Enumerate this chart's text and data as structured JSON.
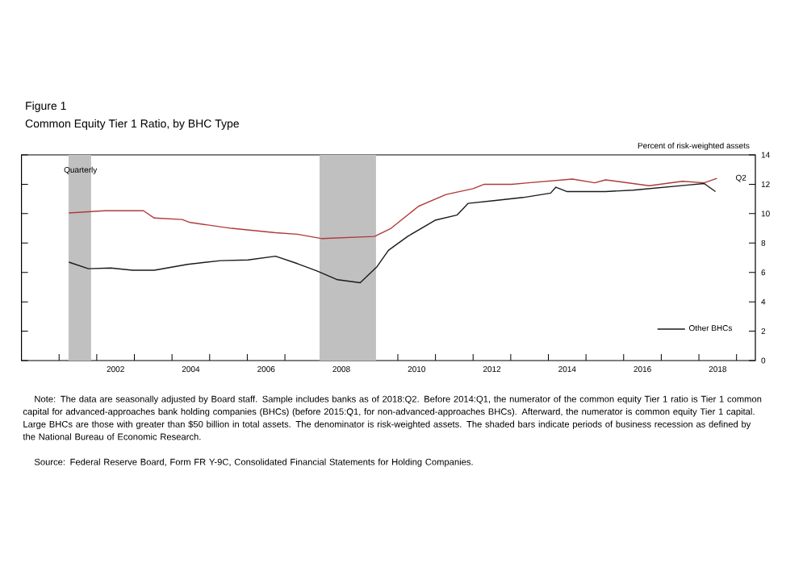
{
  "chart_data": {
    "type": "line",
    "title": "Figure 1",
    "subtitle": "Common Equity Tier 1 Ratio, by BHC Type",
    "ylabel": "Percent of risk-weighted assets",
    "xlim": [
      2000,
      2019.5
    ],
    "ylim": [
      0,
      14
    ],
    "yticks": [
      0,
      2,
      4,
      6,
      8,
      10,
      12,
      14
    ],
    "xticks": [
      {
        "value": 2001,
        "label": null
      },
      {
        "value": 2002,
        "label": null
      },
      {
        "value": 2003,
        "label": null
      },
      {
        "value": 2004,
        "label": null
      },
      {
        "value": 2005,
        "label": null
      },
      {
        "value": 2006,
        "label": null
      },
      {
        "value": 2007,
        "label": null
      },
      {
        "value": 2008,
        "label": null
      },
      {
        "value": 2009,
        "label": null
      },
      {
        "value": 2010,
        "label": null
      },
      {
        "value": 2011,
        "label": null
      },
      {
        "value": 2012,
        "label": null
      },
      {
        "value": 2013,
        "label": null
      },
      {
        "value": 2014,
        "label": null
      },
      {
        "value": 2015,
        "label": null
      },
      {
        "value": 2016,
        "label": null
      },
      {
        "value": 2017,
        "label": null
      },
      {
        "value": 2018,
        "label": null
      },
      {
        "value": 2019,
        "label": null
      },
      {
        "value": 2002.5,
        "label": "2002"
      },
      {
        "value": 2004.5,
        "label": "2004"
      },
      {
        "value": 2006.5,
        "label": "2006"
      },
      {
        "value": 2008.5,
        "label": "2008"
      },
      {
        "value": 2010.5,
        "label": "2010"
      },
      {
        "value": 2012.5,
        "label": "2012"
      },
      {
        "value": 2014.5,
        "label": "2014"
      },
      {
        "value": 2016.5,
        "label": "2016"
      },
      {
        "value": 2018.5,
        "label": "2018"
      }
    ],
    "series": [
      {
        "color": "#b03a3a",
        "x": [
          2001.26,
          2002.21,
          2003.24,
          2003.53,
          2004.27,
          2004.48,
          2005.58,
          2006.75,
          2007.33,
          2007.99,
          2009.38,
          2009.82,
          2010.55,
          2011.28,
          2012.0,
          2012.3,
          2013.03,
          2013.47,
          2014.64,
          2015.23,
          2015.52,
          2016.68,
          2017.56,
          2018.14,
          2018.48
        ],
        "values": [
          10.05,
          10.2,
          10.2,
          9.7,
          9.6,
          9.4,
          9.0,
          8.7,
          8.6,
          8.3,
          8.45,
          9.0,
          10.5,
          11.3,
          11.7,
          12.0,
          12.0,
          12.1,
          12.35,
          12.1,
          12.3,
          11.9,
          12.2,
          12.1,
          12.4
        ]
      },
      {
        "name": "Other BHCs",
        "color": "#1a1a1a",
        "x": [
          2001.26,
          2001.78,
          2002.37,
          2002.95,
          2003.53,
          2004.41,
          2005.29,
          2006.02,
          2006.75,
          2007.33,
          2007.85,
          2008.4,
          2009.0,
          2009.45,
          2009.75,
          2010.26,
          2010.99,
          2011.57,
          2011.87,
          2012.6,
          2013.33,
          2014.06,
          2014.2,
          2014.5,
          2015.52,
          2016.25,
          2017.71,
          2018.14,
          2018.44
        ],
        "values": [
          6.7,
          6.25,
          6.3,
          6.15,
          6.15,
          6.55,
          6.8,
          6.85,
          7.1,
          6.6,
          6.1,
          5.5,
          5.3,
          6.4,
          7.5,
          8.45,
          9.55,
          9.9,
          10.7,
          10.9,
          11.1,
          11.4,
          11.8,
          11.5,
          11.5,
          11.6,
          11.95,
          12.05,
          11.5
        ]
      }
    ],
    "bands": [
      {
        "axis": "x",
        "from": 2001.25,
        "to": 2001.85,
        "color": "#c0c0c0"
      },
      {
        "axis": "x",
        "from": 2007.92,
        "to": 2009.42,
        "color": "#c0c0c0"
      }
    ],
    "legend": "bottom right",
    "grid": false,
    "marker": "none",
    "line_style": "solid",
    "annotations": [
      "Quarterly",
      {
        "text": "Q2",
        "x": 2018.48,
        "y": 12.4
      },
      "Note: The data are seasonally adjusted by Board staff. Sample includes banks as of 2018:Q2.  Before 2014:Q1, the numerator of the common equity Tier 1 ratio is Tier 1 common capital for advanced-approaches bank holding companies (BHCs) (before 2015:Q1, for non-advanced-approaches BHCs).  Afterward, the numerator is common equity Tier 1 capital. Large BHCs are those with greater than $50 billion in total assets. The denominator is risk-weighted assets. The shaded bars indicate periods of business recession as defined by the National Bureau of Economic Research.",
      "Source:  Federal Reserve Board, Form FR Y-9C, Consolidated Financial Statements for Holding Companies."
    ]
  }
}
